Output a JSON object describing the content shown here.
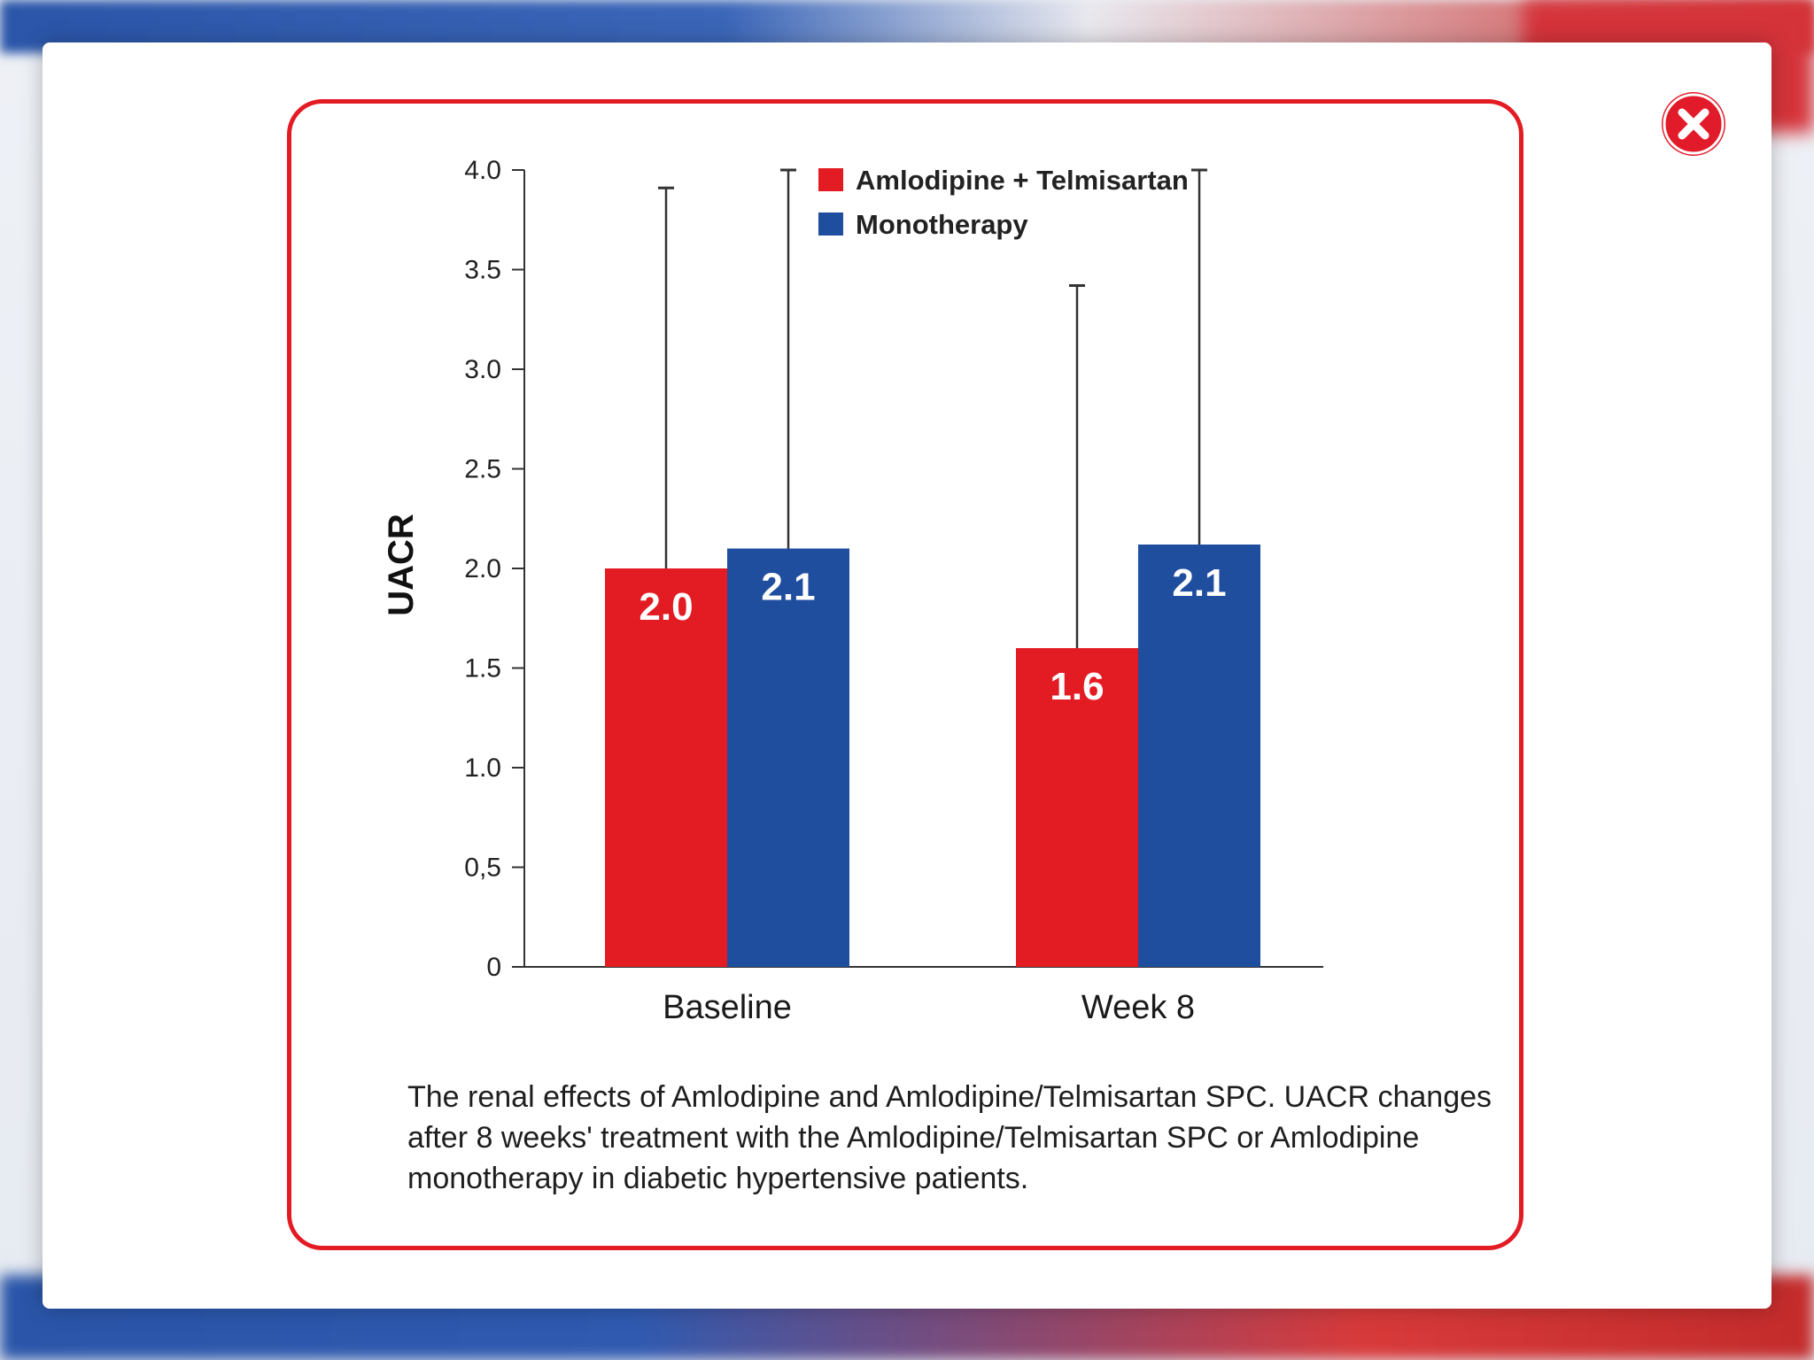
{
  "colors": {
    "combo": "#e31c24",
    "mono": "#1f4e9e",
    "frame": "#e31c24",
    "close_button": "#e21b2a"
  },
  "close_button": {
    "icon": "close-icon"
  },
  "caption": "The renal effects of Amlodipine and Amlodipine/Telmisartan SPC. UACR changes after 8 weeks' treatment with the Amlodipine/Telmisartan SPC or Amlodipine monotherapy in diabetic hypertensive patients.",
  "chart_data": {
    "type": "bar",
    "title": "",
    "xlabel": "",
    "ylabel": "UACR",
    "ylim": [
      0,
      4.0
    ],
    "yticks": [
      0,
      0.5,
      1.0,
      1.5,
      2.0,
      2.5,
      3.0,
      3.5,
      4.0
    ],
    "ytick_labels": [
      "0",
      "0,5",
      "1.0",
      "1.5",
      "2.0",
      "2.5",
      "3.0",
      "3.5",
      "4.0"
    ],
    "categories": [
      "Baseline",
      "Week 8"
    ],
    "series": [
      {
        "name": "Amlodipine + Telmisartan",
        "values": [
          2.0,
          1.6
        ],
        "error_upper": [
          3.91,
          3.42
        ],
        "data_labels": [
          "2.0",
          "1.6"
        ]
      },
      {
        "name": "Monotherapy",
        "values": [
          2.1,
          2.12
        ],
        "error_upper": [
          4.0,
          4.0
        ],
        "data_labels": [
          "2.1",
          "2.1"
        ]
      }
    ],
    "legend_position": "top-right",
    "grid": false
  }
}
